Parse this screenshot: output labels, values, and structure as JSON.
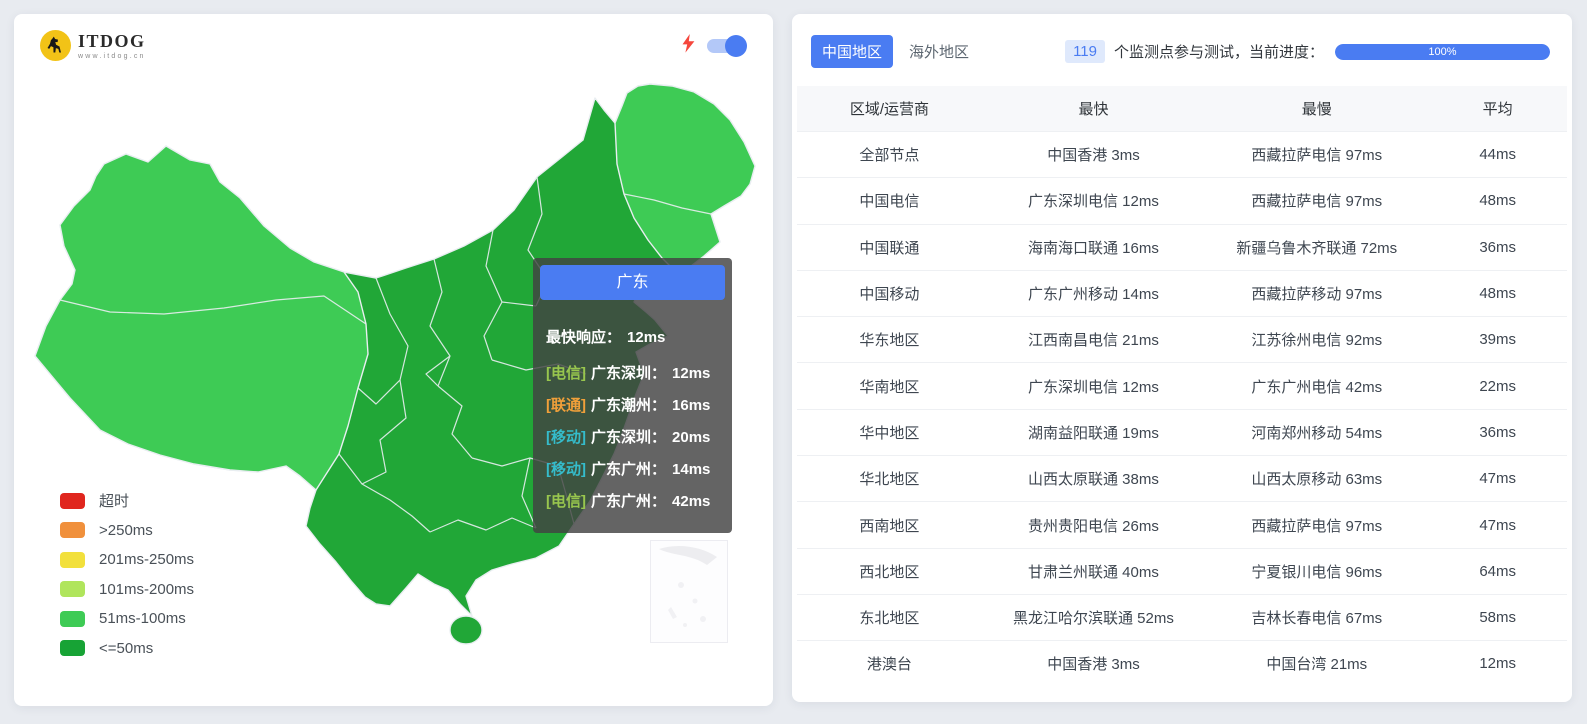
{
  "colors": {
    "accent_blue": "#4a7cf2",
    "page_background": "#e8ebf0",
    "map_fast_green": "#21a737",
    "map_medium_green": "#3ecb55",
    "lightning_red": "#f5463c",
    "logo_yellow": "#f2c317"
  },
  "map_panel": {
    "logo": {
      "title": "ITDOG",
      "subtitle": "www.itdog.cn"
    },
    "toolbar": {
      "fast_mode_on": true
    },
    "tooltip": {
      "title": "广东",
      "fastest_label": "最快响应：",
      "fastest_value": "12ms",
      "entries": [
        {
          "tag": "[电信]",
          "color": "#98c64e",
          "place": "广东深圳：",
          "value": "12ms"
        },
        {
          "tag": "[联通]",
          "color": "#f0a03a",
          "place": "广东潮州：",
          "value": "16ms"
        },
        {
          "tag": "[移动]",
          "color": "#35bccb",
          "place": "广东深圳：",
          "value": "20ms"
        },
        {
          "tag": "[移动]",
          "color": "#35bccb",
          "place": "广东广州：",
          "value": "14ms"
        },
        {
          "tag": "[电信]",
          "color": "#98c64e",
          "place": "广东广州：",
          "value": "42ms"
        }
      ]
    },
    "legend": [
      {
        "label": "超时",
        "color": "#e0261e"
      },
      {
        "label": ">250ms",
        "color": "#f0903c"
      },
      {
        "label": "201ms-250ms",
        "color": "#f2e03c"
      },
      {
        "label": "101ms-200ms",
        "color": "#b0e55c"
      },
      {
        "label": "51ms-100ms",
        "color": "#3ecb55"
      },
      {
        "label": "<=50ms",
        "color": "#17a335"
      }
    ]
  },
  "results_panel": {
    "tabs": [
      {
        "label": "中国地区",
        "active": true
      },
      {
        "label": "海外地区",
        "active": false
      }
    ],
    "monitor_count": "119",
    "monitor_text": "个监测点参与测试，当前进度：",
    "progress_label": "100%",
    "progress_percent": 100,
    "table": {
      "headers": [
        "区域/运营商",
        "最快",
        "最慢",
        "平均"
      ],
      "rows": [
        [
          "全部节点",
          "中国香港 3ms",
          "西藏拉萨电信 97ms",
          "44ms"
        ],
        [
          "中国电信",
          "广东深圳电信 12ms",
          "西藏拉萨电信 97ms",
          "48ms"
        ],
        [
          "中国联通",
          "海南海口联通 16ms",
          "新疆乌鲁木齐联通 72ms",
          "36ms"
        ],
        [
          "中国移动",
          "广东广州移动 14ms",
          "西藏拉萨移动 97ms",
          "48ms"
        ],
        [
          "华东地区",
          "江西南昌电信 21ms",
          "江苏徐州电信 92ms",
          "39ms"
        ],
        [
          "华南地区",
          "广东深圳电信 12ms",
          "广东广州电信 42ms",
          "22ms"
        ],
        [
          "华中地区",
          "湖南益阳联通 19ms",
          "河南郑州移动 54ms",
          "36ms"
        ],
        [
          "华北地区",
          "山西太原联通 38ms",
          "山西太原移动 63ms",
          "47ms"
        ],
        [
          "西南地区",
          "贵州贵阳电信 26ms",
          "西藏拉萨电信 97ms",
          "47ms"
        ],
        [
          "西北地区",
          "甘肃兰州联通 40ms",
          "宁夏银川电信 96ms",
          "64ms"
        ],
        [
          "东北地区",
          "黑龙江哈尔滨联通 52ms",
          "吉林长春电信 67ms",
          "58ms"
        ],
        [
          "港澳台",
          "中国香港 3ms",
          "中国台湾 21ms",
          "12ms"
        ]
      ]
    }
  }
}
